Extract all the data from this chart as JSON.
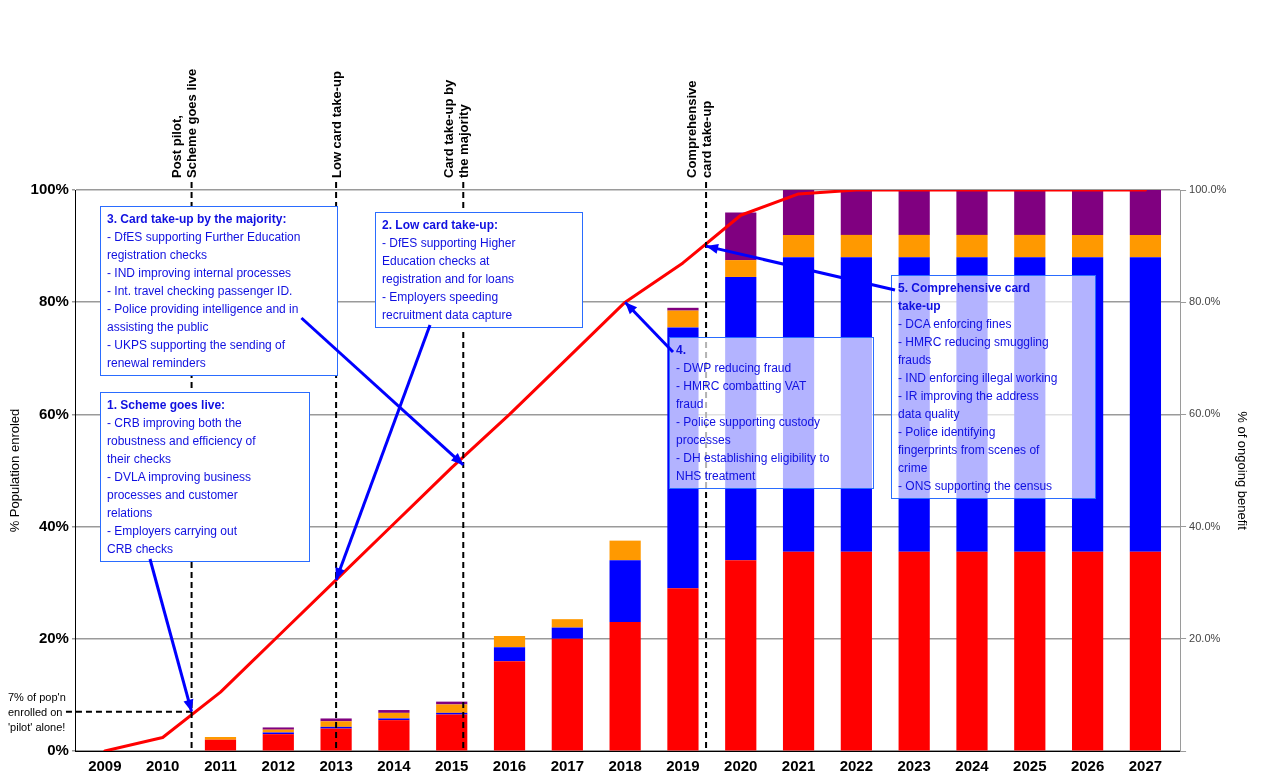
{
  "chart_data": {
    "type": "bar",
    "stacked": true,
    "legend": false,
    "grid": "y",
    "x": [
      2009,
      2010,
      2011,
      2012,
      2013,
      2014,
      2015,
      2016,
      2017,
      2018,
      2019,
      2020,
      2021,
      2022,
      2023,
      2024,
      2025,
      2026,
      2027
    ],
    "xlim": [
      2008.5,
      2027.6
    ],
    "xticks": [
      2009,
      2010,
      2011,
      2012,
      2013,
      2014,
      2015,
      2016,
      2017,
      2018,
      2019,
      2020,
      2021,
      2022,
      2023,
      2024,
      2025,
      2026,
      2027
    ],
    "ylabel": "% Population enroled",
    "y2label": "% of ongoing benefit",
    "ylim": [
      0,
      100
    ],
    "yticks": [
      {
        "value": 0,
        "label": "0%"
      },
      {
        "value": 20,
        "label": "20%"
      },
      {
        "value": 40,
        "label": "40%"
      },
      {
        "value": 60,
        "label": "60%"
      },
      {
        "value": 80,
        "label": "80%"
      },
      {
        "value": 100,
        "label": "100%"
      }
    ],
    "y2lim": [
      0,
      100
    ],
    "y2ticks": [
      {
        "value": 0,
        "label": null
      },
      {
        "value": 20,
        "label": "20.0%"
      },
      {
        "value": 40,
        "label": "40.0%"
      },
      {
        "value": 60,
        "label": "60.0%"
      },
      {
        "value": 80,
        "label": "80.0%"
      },
      {
        "value": 100,
        "label": "100.0%"
      }
    ],
    "series": [
      {
        "axis": "y2",
        "color": "#ff0000",
        "values": [
          null,
          null,
          2,
          3,
          4,
          5.5,
          6.5,
          16,
          20,
          23,
          29,
          34,
          35.5,
          35.5,
          35.5,
          35.5,
          35.5,
          35.5,
          35.5
        ]
      },
      {
        "axis": "y2",
        "color": "#0000ff",
        "values": [
          null,
          null,
          null,
          0.3,
          0.3,
          0.3,
          0.3,
          2.5,
          2,
          11,
          46.5,
          50.5,
          52.5,
          52.5,
          52.5,
          52.5,
          52.5,
          52.5,
          52.5
        ]
      },
      {
        "axis": "y2",
        "color": "#ff9900",
        "values": [
          null,
          null,
          0.5,
          0.5,
          1,
          1,
          1.5,
          2,
          1.5,
          3.5,
          3,
          3,
          4,
          4,
          4,
          4,
          4,
          4,
          4
        ]
      },
      {
        "axis": "y2",
        "color": "#800080",
        "values": [
          null,
          null,
          null,
          0.4,
          0.5,
          0.5,
          0.5,
          null,
          null,
          null,
          0.5,
          8.5,
          8,
          8,
          8,
          8,
          8,
          8,
          8
        ]
      },
      {
        "type": "line",
        "axis": "y",
        "color": "#ff0000",
        "marker": "none",
        "line_style": "solid",
        "values": [
          0,
          2.4,
          10.5,
          20.5,
          30.5,
          40.5,
          50.5,
          60,
          70,
          80,
          87,
          95.5,
          99.3,
          100,
          100,
          100,
          100,
          100,
          100
        ]
      }
    ],
    "ref_lines": [
      {
        "axis": "x",
        "value": 2010.5,
        "label": "Post pilot,\nScheme goes live",
        "line_style": "dashed",
        "color": "#000000"
      },
      {
        "axis": "x",
        "value": 2013,
        "label": "Low card take-up",
        "line_style": "dashed",
        "color": "#000000"
      },
      {
        "axis": "x",
        "value": 2015.2,
        "label": "Card take-up by\nthe majority",
        "line_style": "dashed",
        "color": "#000000"
      },
      {
        "axis": "x",
        "value": 2019.4,
        "label": "Comprehensive\ncard take-up",
        "line_style": "dashed",
        "color": "#000000"
      },
      {
        "axis": "y",
        "value": 7,
        "label": "7% of pop'n\nenrolled on\n'pilot' alone!",
        "line_style": "dashed",
        "color": "#000000"
      }
    ],
    "annotations": [
      "1. Scheme goes live:",
      "- CRB improving both the\nrobustness and efficiency of\ntheir checks",
      "- DVLA improving business\nprocesses and customer\nrelations",
      {
        "text": "- Employers carrying out\nCRB checks",
        "x": 2010.5,
        "y": 7
      },
      "2. Low card take-up:",
      "- DfES supporting Higher\nEducation checks at\nregistration and for loans",
      {
        "text": "- Employers speeding\nrecruitment data capture",
        "x": 2013,
        "y": 30.5
      },
      "3. Card take-up by the majority:",
      "- DfES supporting Further Education\nregistration checks",
      "- IND improving internal processes",
      "- Int. travel checking passenger ID.",
      {
        "text": "- Police providing intelligence and in\nassisting the public",
        "x": 2015.2,
        "y": 51
      },
      "- UKPS supporting the sending of\nrenewal reminders",
      {
        "text": "4.",
        "x": 2018,
        "y": 80
      },
      "- DWP reducing fraud",
      "- HMRC combatting VAT\nfraud",
      "- Police supporting custody\nprocesses",
      "- DH establishing eligibility to\nNHS treatment",
      {
        "text": "5. Comprehensive card\ntake-up",
        "x": 2019.4,
        "y": 90
      },
      "- DCA enforcing fines",
      "- HMRC reducing smuggling\nfrauds",
      "- IND enforcing illegal working",
      "- IR improving the address\ndata quality",
      "- Police identifying\nfingerprints from scenes of\ncrime",
      "- ONS supporting the census"
    ]
  }
}
